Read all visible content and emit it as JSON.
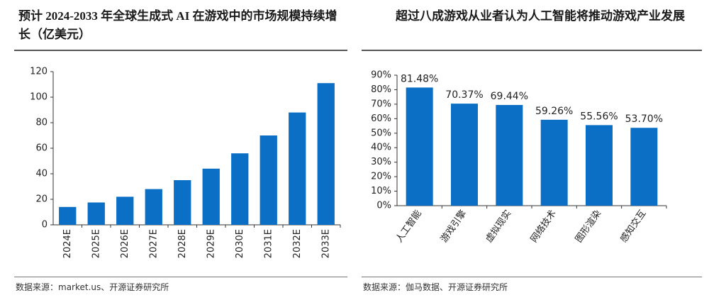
{
  "chart_data": [
    {
      "type": "bar",
      "title": "预计 2024-2033 年全球生成式 AI 在游戏中的市场规模持续增长（亿美元）",
      "categories": [
        "2024E",
        "2025E",
        "2026E",
        "2027E",
        "2028E",
        "2029E",
        "2030E",
        "2031E",
        "2032E",
        "2033E"
      ],
      "values": [
        14,
        17.5,
        22,
        28,
        35,
        44,
        56,
        70,
        88,
        111
      ],
      "color": "#0b6fc6",
      "ylim": [
        0,
        120
      ],
      "yticks": [
        0,
        20,
        40,
        60,
        80,
        100,
        120
      ],
      "source": "数据来源：market.us、开源证券研究所"
    },
    {
      "type": "bar",
      "title": "超过八成游戏从业者认为人工智能将推动游戏产业发展",
      "categories": [
        "人工智能",
        "游戏引擎",
        "虚拟现实",
        "网络技术",
        "图形渲染",
        "感知交互"
      ],
      "values": [
        81.48,
        70.37,
        69.44,
        59.26,
        55.56,
        53.7
      ],
      "value_labels": [
        "81.48%",
        "70.37%",
        "69.44%",
        "59.26%",
        "55.56%",
        "53.70%"
      ],
      "color": "#0b6fc6",
      "ylim": [
        0,
        90
      ],
      "yticks": [
        {
          "value": 0,
          "label": "0%"
        },
        {
          "value": 10,
          "label": "10%"
        },
        {
          "value": 20,
          "label": "20%"
        },
        {
          "value": 30,
          "label": "30%"
        },
        {
          "value": 40,
          "label": "40%"
        },
        {
          "value": 50,
          "label": "50%"
        },
        {
          "value": 60,
          "label": "60%"
        },
        {
          "value": 70,
          "label": "70%"
        },
        {
          "value": 80,
          "label": "80%"
        },
        {
          "value": 90,
          "label": "90%"
        }
      ],
      "source": "数据来源：伽马数据、开源证券研究所"
    }
  ]
}
